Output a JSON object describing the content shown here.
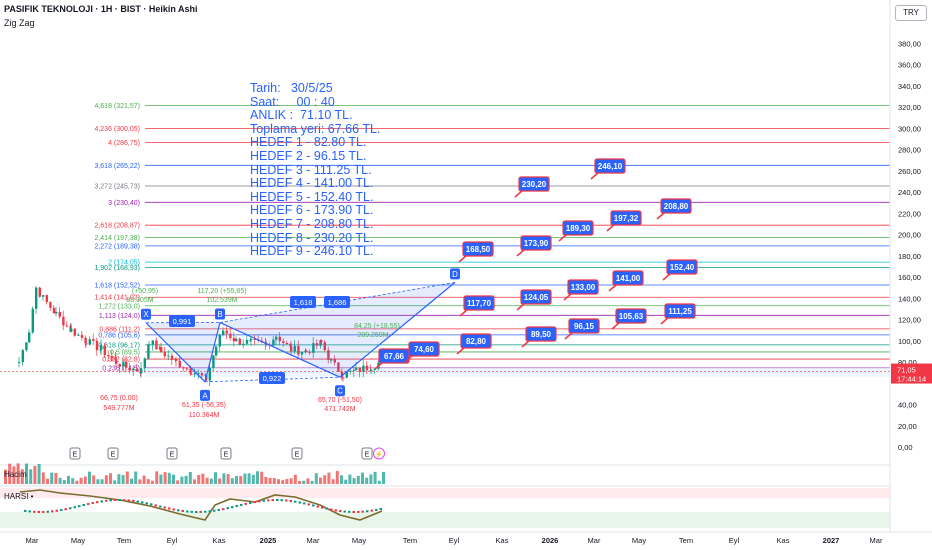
{
  "header": {
    "title": "PASIFIK TEKNOLOJI · 1H · BIST · Heikin Ashi",
    "indicator": "Zig Zag",
    "currency": "TRY"
  },
  "info_text": [
    "Tarih:   30/5/25",
    "Saat:     00 : 40",
    "ANLIK :  71.10 TL.",
    "Toplama yeri: 67.66 TL.",
    "HEDEF 1 - 82.80 TL.",
    "HEDEF 2 - 96.15 TL.",
    "HEDEF 3 - 111.25 TL.",
    "HEDEF 4 - 141.00 TL.",
    "HEDEF 5 - 152.40 TL.",
    "HEDEF 6 - 173.90 TL.",
    "HEDEF 7 - 208.80 TL.",
    "HEDEF 8 - 230.20 TL.",
    "HEDEF 9 - 246.10 TL."
  ],
  "price_axis": [
    "380,00",
    "360,00",
    "340,00",
    "320,00",
    "300,00",
    "280,00",
    "260,00",
    "240,00",
    "220,00",
    "200,00",
    "180,00",
    "160,00",
    "140,00",
    "120,00",
    "100,00",
    "80,00",
    "40,00",
    "20,00",
    "0,00"
  ],
  "time_axis": [
    "Mar",
    "May",
    "Tem",
    "Eyl",
    "Kas",
    "2025",
    "Mar",
    "May",
    "Tem",
    "Eyl",
    "Kas",
    "2026",
    "Mar",
    "May",
    "Tem",
    "Eyl",
    "Kas",
    "2027",
    "Mar"
  ],
  "current_price": {
    "value": "71,05",
    "time": "17:44:14"
  },
  "fib_levels": [
    {
      "label": "4,618 (321,57)",
      "color": "#4caf50"
    },
    {
      "label": "4,236 (300,05)",
      "color": "#f23645"
    },
    {
      "label": "4 (286,75)",
      "color": "#f23645"
    },
    {
      "label": "3,618 (265,22)",
      "color": "#2962ff"
    },
    {
      "label": "3,272 (245,73)",
      "color": "#787b86"
    },
    {
      "label": "3 (230,40)",
      "color": "#9c27b0"
    },
    {
      "label": "2,618 (208,87)",
      "color": "#f23645"
    },
    {
      "label": "2,414 (197,38)",
      "color": "#4caf50"
    },
    {
      "label": "2,272 (189,38)",
      "color": "#2962ff"
    },
    {
      "label": "2 (174,05)",
      "color": "#00bcd4"
    },
    {
      "label": "1,902 (168,93)",
      "color": "#089981"
    },
    {
      "label": "1,618 (152,52)",
      "color": "#2962ff"
    },
    {
      "label": "1,414 (141,02)",
      "color": "#f23645"
    },
    {
      "label": "1,272 (133,0)",
      "color": "#4caf50"
    },
    {
      "label": "1,113 (124,0)",
      "color": "#9c27b0"
    },
    {
      "label": "0,886 (111,2)",
      "color": "#f23645"
    },
    {
      "label": "0,786 (105,6)",
      "color": "#2962ff"
    },
    {
      "label": "0,618 (96,17)",
      "color": "#089981"
    },
    {
      "label": "0,5 (89,5)",
      "color": "#4caf50"
    },
    {
      "label": "0,382 (82,8)",
      "color": "#f23645"
    },
    {
      "label": "0,236 (74,5)",
      "color": "#9c27b0"
    }
  ],
  "targets": [
    "67,66",
    "74,60",
    "82,80",
    "89,50",
    "96,15",
    "105,63",
    "111,25",
    "117,70",
    "124,05",
    "133,00",
    "141,00",
    "152,40",
    "168,50",
    "173,90",
    "189,30",
    "197,32",
    "208,80",
    "230,20",
    "246,10"
  ],
  "pattern": {
    "points": [
      "X",
      "A",
      "B",
      "C",
      "D"
    ],
    "ratios": [
      "0,991",
      "1,618",
      "1,686",
      "0,922"
    ],
    "annotations": [
      {
        "text": "66,75 (0.00)",
        "color": "#f23645"
      },
      {
        "text": "549.777M",
        "color": "#f23645"
      },
      {
        "text": "61,35 (-56,35)",
        "color": "#f23645"
      },
      {
        "text": "110.364M",
        "color": "#f23645"
      },
      {
        "text": "117,20 (+55,85)",
        "color": "#4caf50"
      },
      {
        "text": "102.539M",
        "color": "#4caf50"
      },
      {
        "text": "65,70 (-51,50)",
        "color": "#f23645"
      },
      {
        "text": "471.742M",
        "color": "#f23645"
      },
      {
        "text": "84,25 (+18,55)",
        "color": "#4caf50"
      },
      {
        "text": "209.259M",
        "color": "#4caf50"
      },
      {
        "text": "(+50,95)",
        "color": "#4caf50"
      },
      {
        "text": "88.305M",
        "color": "#4caf50"
      }
    ]
  },
  "events": [
    "E",
    "E",
    "E",
    "E",
    "E",
    "E"
  ],
  "volume": {
    "title": "Hacim",
    "value": "39,46 M",
    "color": "#f23645"
  },
  "harsi": {
    "title": "HARSI •",
    "values": [
      "-7,30",
      "-7,30",
      "-7,30"
    ]
  },
  "colors": {
    "up": "#089981",
    "down": "#f23645",
    "accent": "#2962ff"
  }
}
